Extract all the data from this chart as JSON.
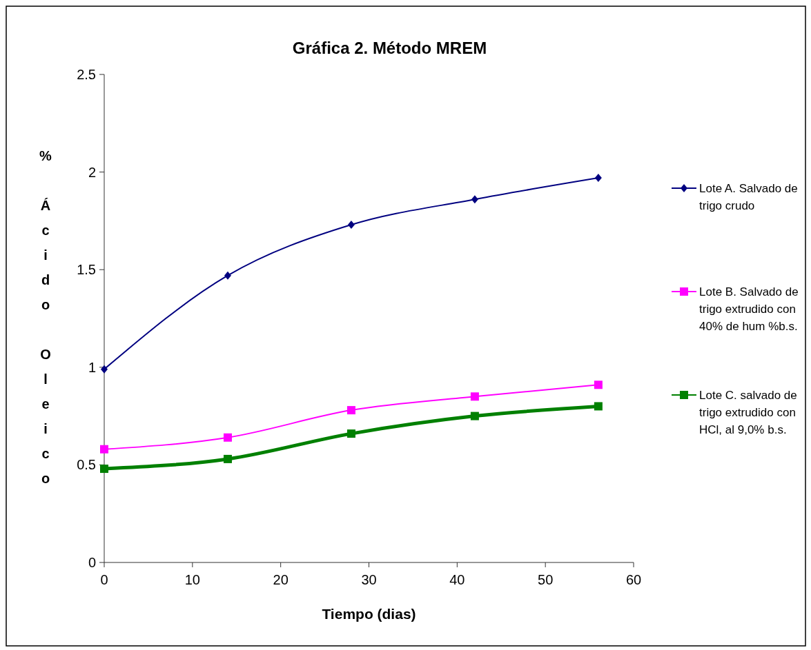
{
  "chart_data": {
    "type": "line",
    "title": "Gráfica 2. Método MREM",
    "xlabel": "Tiempo (dias)",
    "ylabel": "% Ácido Oleico",
    "x": [
      0,
      14,
      28,
      42,
      56
    ],
    "series": [
      {
        "name": "Lote A. Salvado de trigo crudo",
        "color": "#000080",
        "values": [
          0.99,
          1.47,
          1.73,
          1.86,
          1.97
        ],
        "marker": "diamond"
      },
      {
        "name": "Lote B. Salvado de trigo extrudido con 40% de hum %b.s.",
        "color": "#ff00ff",
        "values": [
          0.58,
          0.64,
          0.78,
          0.85,
          0.91
        ],
        "marker": "square"
      },
      {
        "name": "Lote C. salvado de trigo extrudido con HCl, al 9,0% b.s.",
        "color": "#008000",
        "values": [
          0.48,
          0.53,
          0.66,
          0.75,
          0.8
        ],
        "marker": "square"
      }
    ],
    "xlim": [
      0,
      60
    ],
    "xticks": [
      0,
      10,
      20,
      30,
      40,
      50,
      60
    ],
    "ylim": [
      0,
      2.5
    ],
    "yticks": [
      0,
      0.5,
      1,
      1.5,
      2,
      2.5
    ],
    "grid": false,
    "legend": "right"
  }
}
